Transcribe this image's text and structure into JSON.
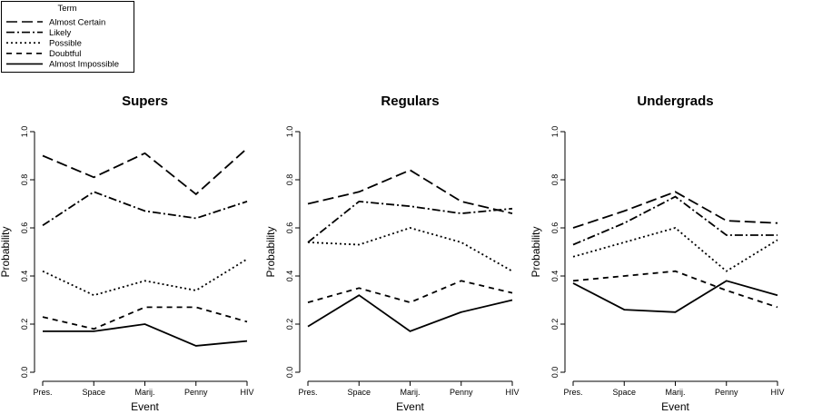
{
  "legend": {
    "title": "Term",
    "items": [
      {
        "label": "Almost Certain",
        "dash": "12,5",
        "color": "#000000"
      },
      {
        "label": "Likely",
        "dash": "9,3,2,3",
        "color": "#000000"
      },
      {
        "label": "Possible",
        "dash": "2,3",
        "color": "#000000"
      },
      {
        "label": "Doubtful",
        "dash": "6,5",
        "color": "#000000"
      },
      {
        "label": "Almost Impossible",
        "dash": "",
        "color": "#000000"
      }
    ]
  },
  "chart_data": [
    {
      "type": "line",
      "title": "Supers",
      "xlabel": "Event",
      "ylabel": "Probability",
      "categories": [
        "Pres.",
        "Space",
        "Marij.",
        "Penny",
        "HIV"
      ],
      "ylim": [
        0,
        1
      ],
      "yticks": [
        "0.0",
        "0.2",
        "0.4",
        "0.6",
        "0.8",
        "1.0"
      ],
      "series": [
        {
          "name": "Almost Certain",
          "values": [
            0.9,
            0.81,
            0.91,
            0.74,
            0.93
          ]
        },
        {
          "name": "Likely",
          "values": [
            0.61,
            0.75,
            0.67,
            0.64,
            0.71
          ]
        },
        {
          "name": "Possible",
          "values": [
            0.42,
            0.32,
            0.38,
            0.34,
            0.47
          ]
        },
        {
          "name": "Doubtful",
          "values": [
            0.23,
            0.18,
            0.27,
            0.27,
            0.21
          ]
        },
        {
          "name": "Almost Impossible",
          "values": [
            0.17,
            0.17,
            0.2,
            0.11,
            0.13
          ]
        }
      ]
    },
    {
      "type": "line",
      "title": "Regulars",
      "xlabel": "Event",
      "ylabel": "Probability",
      "categories": [
        "Pres.",
        "Space",
        "Marij.",
        "Penny",
        "HIV"
      ],
      "ylim": [
        0,
        1
      ],
      "yticks": [
        "0.0",
        "0.2",
        "0.4",
        "0.6",
        "0.8",
        "1.0"
      ],
      "series": [
        {
          "name": "Almost Certain",
          "values": [
            0.7,
            0.75,
            0.84,
            0.71,
            0.66
          ]
        },
        {
          "name": "Likely",
          "values": [
            0.54,
            0.71,
            0.69,
            0.66,
            0.68
          ]
        },
        {
          "name": "Possible",
          "values": [
            0.54,
            0.53,
            0.6,
            0.54,
            0.42
          ]
        },
        {
          "name": "Doubtful",
          "values": [
            0.29,
            0.35,
            0.29,
            0.38,
            0.33
          ]
        },
        {
          "name": "Almost Impossible",
          "values": [
            0.19,
            0.32,
            0.17,
            0.25,
            0.3
          ]
        }
      ]
    },
    {
      "type": "line",
      "title": "Undergrads",
      "xlabel": "Event",
      "ylabel": "Probability",
      "categories": [
        "Pres.",
        "Space",
        "Marij.",
        "Penny",
        "HIV"
      ],
      "ylim": [
        0,
        1
      ],
      "yticks": [
        "0.0",
        "0.2",
        "0.4",
        "0.6",
        "0.8",
        "1.0"
      ],
      "series": [
        {
          "name": "Almost Certain",
          "values": [
            0.6,
            0.67,
            0.75,
            0.63,
            0.62
          ]
        },
        {
          "name": "Likely",
          "values": [
            0.53,
            0.62,
            0.73,
            0.57,
            0.57
          ]
        },
        {
          "name": "Possible",
          "values": [
            0.48,
            0.54,
            0.6,
            0.42,
            0.55
          ]
        },
        {
          "name": "Doubtful",
          "values": [
            0.38,
            0.4,
            0.42,
            0.34,
            0.27
          ]
        },
        {
          "name": "Almost Impossible",
          "values": [
            0.37,
            0.26,
            0.25,
            0.38,
            0.32
          ]
        }
      ]
    }
  ]
}
